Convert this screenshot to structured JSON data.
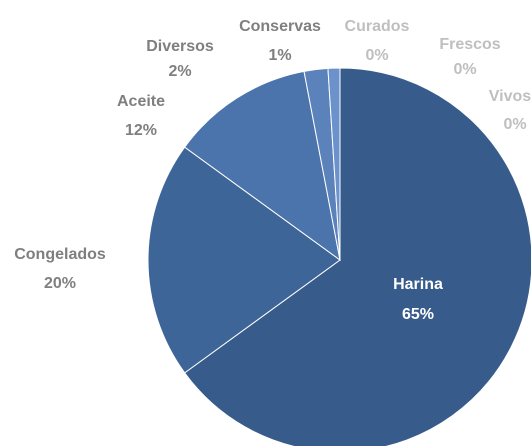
{
  "chart_data": {
    "type": "pie",
    "categories": [
      "Harina",
      "Congelados",
      "Aceite",
      "Diversos",
      "Conservas",
      "Curados",
      "Frescos",
      "Vivos"
    ],
    "values": [
      65,
      20,
      12,
      2,
      1,
      0,
      0,
      0
    ],
    "value_labels": [
      "65%",
      "20%",
      "12%",
      "2%",
      "1%",
      "0%",
      "0%",
      "0%"
    ],
    "colors": [
      "#375b8a",
      "#3e6597",
      "#4a74ab",
      "#5b82bb",
      "#6b92cb",
      "#a0b4d8",
      "#b8c8e4",
      "#cdd8ee"
    ]
  }
}
